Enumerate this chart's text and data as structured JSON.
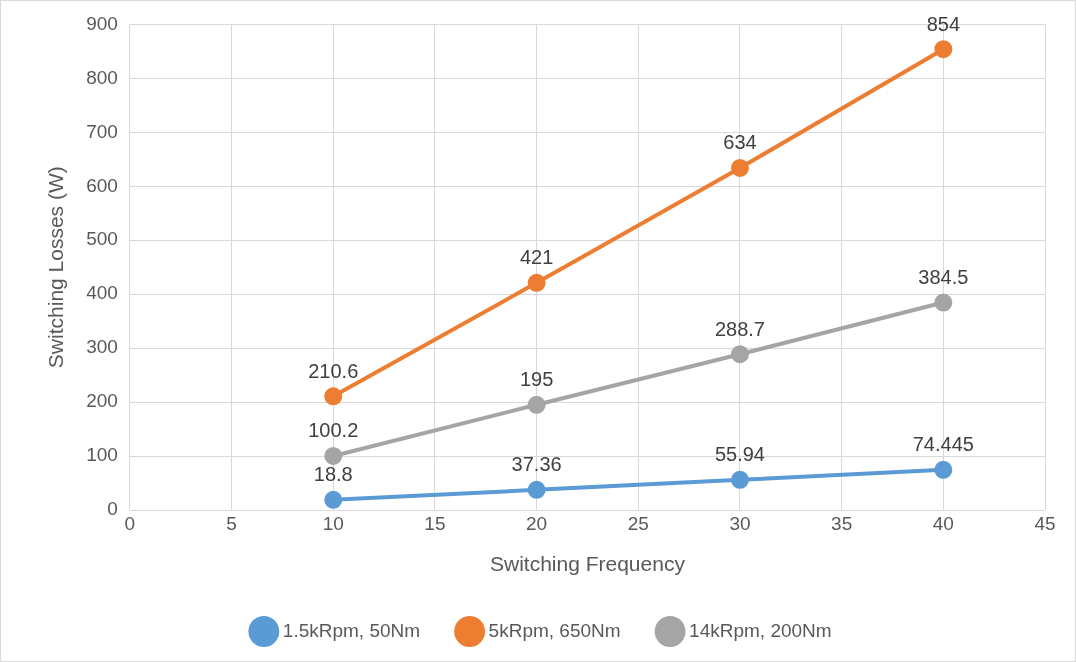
{
  "chart_data": {
    "type": "line",
    "xlabel": "Switching Frequency",
    "ylabel": "Switching Losses (W)",
    "xlim": [
      0,
      45
    ],
    "xticks": [
      0,
      5,
      10,
      15,
      20,
      25,
      30,
      35,
      40,
      45
    ],
    "ylim": [
      0,
      900
    ],
    "yticks": [
      0,
      100,
      200,
      300,
      400,
      500,
      600,
      700,
      800,
      900
    ],
    "x": [
      10,
      20,
      30,
      40
    ],
    "series": [
      {
        "name": "1.5kRpm, 50Nm",
        "color": "#5b9bd5",
        "values": [
          18.8,
          37.36,
          55.94,
          74.445
        ]
      },
      {
        "name": "5kRpm, 650Nm",
        "color": "#ed7d31",
        "values": [
          210.6,
          421,
          634,
          854
        ]
      },
      {
        "name": "14kRpm, 200Nm",
        "color": "#a5a5a5",
        "values": [
          100.2,
          195,
          288.7,
          384.5
        ]
      }
    ],
    "grid": true,
    "legend": "bottom",
    "marker": "circle",
    "line_style": "solid",
    "data_labels": true
  }
}
